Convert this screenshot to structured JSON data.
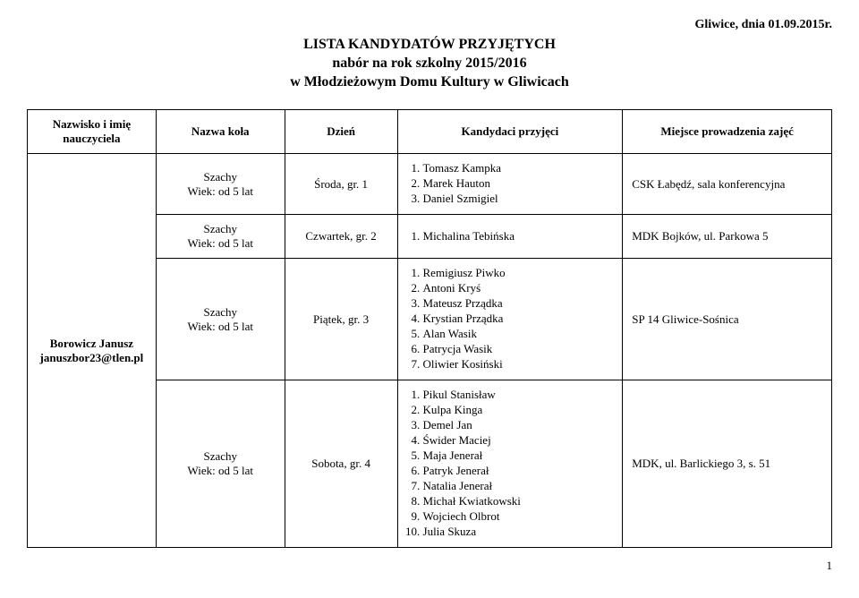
{
  "header": {
    "date_location": "Gliwice, dnia 01.09.2015r.",
    "title_line1": "LISTA KANDYDATÓW PRZYJĘTYCH",
    "title_line2": "nabór na rok szkolny 2015/2016",
    "title_line3": "w Młodzieżowym Domu Kultury w Gliwicach"
  },
  "columns": {
    "teacher": "Nazwisko i imię\nnauczyciela",
    "group": "Nazwa koła",
    "day": "Dzień",
    "candidates": "Kandydaci przyjęci",
    "location": "Miejsce prowadzenia zajęć"
  },
  "teacher": {
    "name": "Borowicz Janusz",
    "email": "januszbor23@tlen.pl"
  },
  "rows": [
    {
      "group_line1": "Szachy",
      "group_line2": "Wiek: od 5 lat",
      "day": "Środa, gr. 1",
      "candidates": [
        "Tomasz Kampka",
        "Marek Hauton",
        "Daniel Szmigiel"
      ],
      "location": "CSK Łabędź, sala konferencyjna"
    },
    {
      "group_line1": "Szachy",
      "group_line2": "Wiek: od 5 lat",
      "day": "Czwartek, gr. 2",
      "candidates": [
        "Michalina Tebińska"
      ],
      "location": "MDK Bojków, ul. Parkowa 5"
    },
    {
      "group_line1": "Szachy",
      "group_line2": "Wiek: od 5 lat",
      "day": "Piątek, gr. 3",
      "candidates": [
        "Remigiusz Piwko",
        "Antoni Kryś",
        "Mateusz Prządka",
        "Krystian Prządka",
        "Alan Wasik",
        "Patrycja Wasik",
        "Oliwier Kosiński"
      ],
      "location": "SP 14 Gliwice-Sośnica"
    },
    {
      "group_line1": "Szachy",
      "group_line2": "Wiek: od 5 lat",
      "day": "Sobota, gr. 4",
      "candidates": [
        "Pikul Stanisław",
        "Kulpa Kinga",
        "Demel Jan",
        "Świder Maciej",
        "Maja Jenerał",
        "Patryk Jenerał",
        "Natalia Jenerał",
        "Michał Kwiatkowski",
        "Wojciech Olbrot",
        "Julia Skuza"
      ],
      "location": "MDK, ul. Barlickiego 3, s. 51"
    }
  ],
  "page_number": "1"
}
